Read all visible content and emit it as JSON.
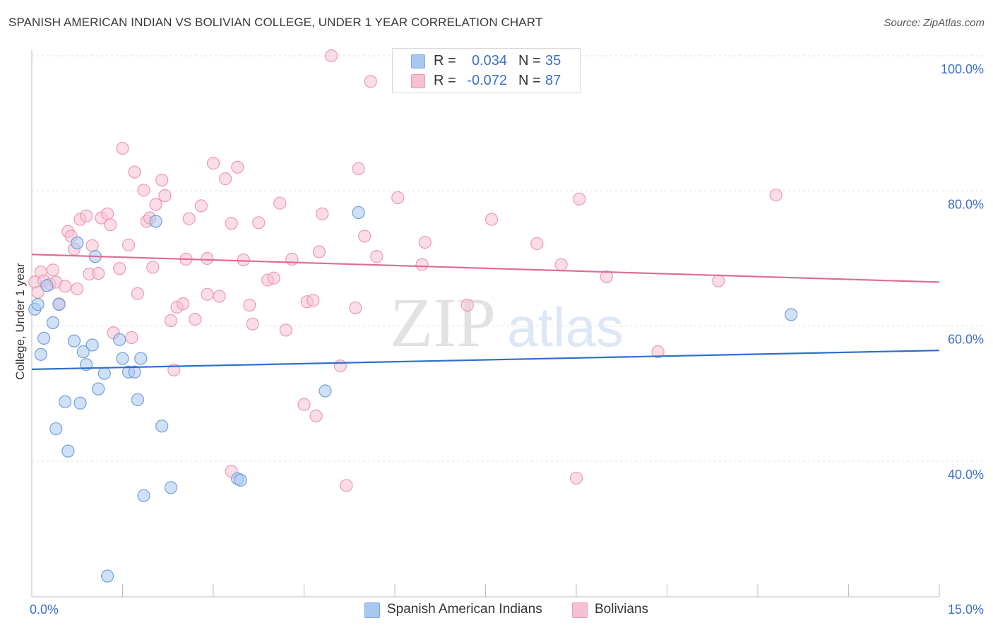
{
  "title": "SPANISH AMERICAN INDIAN VS BOLIVIAN COLLEGE, UNDER 1 YEAR CORRELATION CHART",
  "source": "Source: ZipAtlas.com",
  "watermark": {
    "zip": "ZIP",
    "atlas": "atlas"
  },
  "stats": [
    {
      "r_label": "R =",
      "r_value": "0.034",
      "n_label": "N =",
      "n_value": "35",
      "color": "#a9c8f0",
      "border": "#7aaae6"
    },
    {
      "r_label": "R =",
      "r_value": "-0.072",
      "n_label": "N =",
      "n_value": "87",
      "color": "#f7c1d2",
      "border": "#ee98b4"
    }
  ],
  "legend": [
    {
      "label": "Spanish American Indians",
      "color": "#a9c8f0",
      "border": "#7aaae6"
    },
    {
      "label": "Bolivians",
      "color": "#f7c1d2",
      "border": "#ee98b4"
    }
  ],
  "chart_data": {
    "type": "scatter",
    "title": "SPANISH AMERICAN INDIAN VS BOLIVIAN COLLEGE, UNDER 1 YEAR CORRELATION CHART",
    "xlabel": "",
    "ylabel": "College, Under 1 year",
    "xlim": [
      0,
      15
    ],
    "ylim": [
      20,
      102
    ],
    "x_tick_labels": [
      {
        "value": 0,
        "label": "0.0%"
      },
      {
        "value": 15,
        "label": "15.0%"
      }
    ],
    "y_tick_labels": [
      {
        "value": 40,
        "label": "40.0%"
      },
      {
        "value": 60,
        "label": "60.0%"
      },
      {
        "value": 80,
        "label": "80.0%"
      },
      {
        "value": 100,
        "label": "100.0%"
      }
    ],
    "gridlines": [
      40,
      60,
      80,
      100
    ],
    "series": [
      {
        "name": "Spanish American Indians",
        "fill": "#a9c8f0",
        "stroke": "#6f9fe0",
        "trend": {
          "x": [
            0,
            15
          ],
          "y": [
            53.6,
            56.4
          ],
          "color": "#2f6fcb"
        },
        "points": [
          [
            0.05,
            62.5
          ],
          [
            0.1,
            63.2
          ],
          [
            0.15,
            55.8
          ],
          [
            0.2,
            58.2
          ],
          [
            0.25,
            66.0
          ],
          [
            0.35,
            60.5
          ],
          [
            0.4,
            44.8
          ],
          [
            0.45,
            63.2
          ],
          [
            0.55,
            48.8
          ],
          [
            0.6,
            41.5
          ],
          [
            0.7,
            57.8
          ],
          [
            0.85,
            56.2
          ],
          [
            0.8,
            48.6
          ],
          [
            0.9,
            54.3
          ],
          [
            1.0,
            57.2
          ],
          [
            0.75,
            72.3
          ],
          [
            1.05,
            70.3
          ],
          [
            1.1,
            50.7
          ],
          [
            1.2,
            53.0
          ],
          [
            1.45,
            58.0
          ],
          [
            1.5,
            55.2
          ],
          [
            1.6,
            53.2
          ],
          [
            1.7,
            53.2
          ],
          [
            1.75,
            49.1
          ],
          [
            1.8,
            55.2
          ],
          [
            1.85,
            34.9
          ],
          [
            2.05,
            75.5
          ],
          [
            2.15,
            45.2
          ],
          [
            2.3,
            36.1
          ],
          [
            3.4,
            37.4
          ],
          [
            3.45,
            37.2
          ],
          [
            4.85,
            50.4
          ],
          [
            5.4,
            76.8
          ],
          [
            12.55,
            61.7
          ],
          [
            1.25,
            23.0
          ]
        ]
      },
      {
        "name": "Bolivians",
        "fill": "#f7c1d2",
        "stroke": "#ee98b4",
        "trend": {
          "x": [
            0,
            15
          ],
          "y": [
            70.6,
            66.5
          ],
          "color": "#e06c93"
        },
        "points": [
          [
            0.05,
            66.5
          ],
          [
            0.1,
            65.0
          ],
          [
            0.15,
            68.0
          ],
          [
            0.2,
            66.7
          ],
          [
            0.3,
            66.2
          ],
          [
            0.35,
            68.3
          ],
          [
            0.4,
            66.5
          ],
          [
            0.45,
            63.3
          ],
          [
            0.55,
            65.9
          ],
          [
            0.6,
            74.0
          ],
          [
            0.65,
            73.3
          ],
          [
            0.7,
            71.4
          ],
          [
            0.75,
            65.5
          ],
          [
            0.8,
            75.8
          ],
          [
            0.9,
            76.3
          ],
          [
            0.95,
            67.7
          ],
          [
            1.0,
            71.9
          ],
          [
            1.1,
            67.8
          ],
          [
            1.15,
            76.0
          ],
          [
            1.25,
            76.6
          ],
          [
            1.3,
            75.0
          ],
          [
            1.35,
            59.0
          ],
          [
            1.45,
            68.5
          ],
          [
            1.5,
            86.3
          ],
          [
            1.6,
            72.0
          ],
          [
            1.65,
            58.3
          ],
          [
            1.7,
            82.8
          ],
          [
            1.75,
            64.8
          ],
          [
            1.85,
            80.1
          ],
          [
            1.9,
            75.5
          ],
          [
            1.95,
            76.0
          ],
          [
            2.0,
            68.7
          ],
          [
            2.05,
            78.0
          ],
          [
            2.15,
            81.6
          ],
          [
            2.2,
            79.3
          ],
          [
            2.3,
            60.8
          ],
          [
            2.35,
            53.5
          ],
          [
            2.4,
            62.8
          ],
          [
            2.5,
            63.3
          ],
          [
            2.6,
            75.9
          ],
          [
            2.7,
            61.0
          ],
          [
            2.8,
            77.8
          ],
          [
            2.9,
            70.0
          ],
          [
            2.55,
            69.9
          ],
          [
            3.0,
            84.1
          ],
          [
            3.1,
            64.4
          ],
          [
            3.2,
            81.8
          ],
          [
            3.3,
            75.2
          ],
          [
            3.4,
            83.5
          ],
          [
            3.5,
            69.8
          ],
          [
            3.6,
            63.1
          ],
          [
            3.65,
            60.3
          ],
          [
            3.75,
            75.3
          ],
          [
            3.9,
            66.8
          ],
          [
            4.0,
            67.1
          ],
          [
            4.1,
            78.2
          ],
          [
            4.2,
            59.4
          ],
          [
            4.3,
            69.9
          ],
          [
            4.5,
            48.4
          ],
          [
            4.55,
            63.6
          ],
          [
            4.65,
            63.8
          ],
          [
            4.75,
            71.0
          ],
          [
            4.8,
            76.6
          ],
          [
            4.7,
            46.7
          ],
          [
            4.95,
            100.0
          ],
          [
            5.1,
            54.1
          ],
          [
            5.2,
            36.4
          ],
          [
            5.35,
            62.7
          ],
          [
            5.4,
            83.3
          ],
          [
            5.5,
            73.3
          ],
          [
            5.6,
            96.2
          ],
          [
            5.7,
            70.3
          ],
          [
            6.05,
            79.0
          ],
          [
            6.45,
            69.1
          ],
          [
            6.5,
            72.4
          ],
          [
            7.2,
            63.1
          ],
          [
            7.6,
            75.8
          ],
          [
            8.35,
            72.2
          ],
          [
            8.75,
            69.1
          ],
          [
            9.0,
            37.5
          ],
          [
            9.05,
            78.8
          ],
          [
            9.5,
            67.3
          ],
          [
            10.35,
            56.2
          ],
          [
            11.35,
            66.7
          ],
          [
            12.3,
            79.4
          ],
          [
            2.9,
            64.7
          ],
          [
            3.3,
            38.5
          ]
        ]
      }
    ]
  }
}
